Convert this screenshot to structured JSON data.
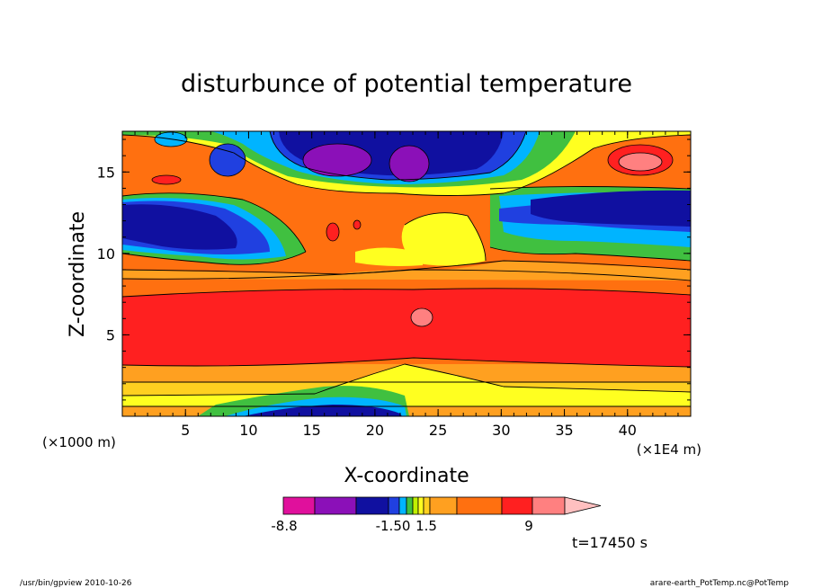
{
  "chart_data": {
    "type": "heatmap",
    "title": "disturbunce of potential temperature",
    "xlabel": "X-coordinate",
    "ylabel": "Z-coordinate",
    "x_unit_left": "(×1000 m)",
    "x_unit_right": "(×1E4 m)",
    "xlim": [
      0,
      45
    ],
    "ylim": [
      0,
      17.5
    ],
    "xticks": [
      5,
      10,
      15,
      20,
      25,
      30,
      35,
      40
    ],
    "yticks": [
      5,
      10,
      15
    ],
    "colorbar": {
      "labels": [
        "-8.8",
        "-1.50",
        "1.5",
        "9"
      ],
      "colors": [
        "#e0109c",
        "#8b10b8",
        "#1010a0",
        "#2040e0",
        "#00b4ff",
        "#40c040",
        "#c0f000",
        "#ffff20",
        "#ffd020",
        "#ffa020",
        "#ff7010",
        "#ff2020",
        "#ff8080",
        "#ffc0c0"
      ]
    },
    "time_label": "t=17450 s",
    "footer_left": "/usr/bin/gpview  2010-10-26",
    "footer_right": "arare-earth_PotTemp.nc@PotTemp"
  }
}
